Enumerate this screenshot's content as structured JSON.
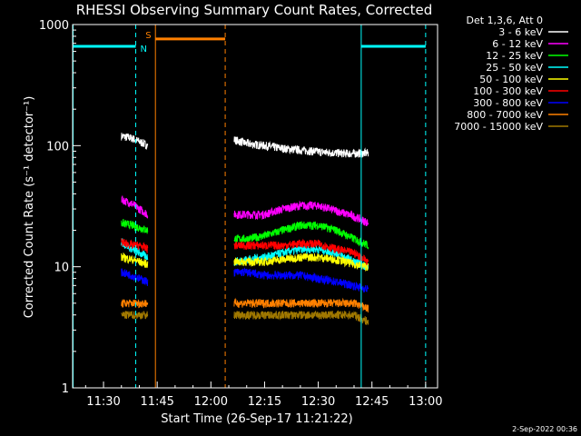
{
  "chart_data": {
    "type": "line",
    "title": "RHESSI Observing Summary Count Rates, Corrected",
    "xlabel": "Start Time (26-Sep-17 11:21:22)",
    "ylabel": "Corrected Count Rate (s⁻¹ detector⁻¹)",
    "yscale": "log",
    "ylim": [
      1,
      1000
    ],
    "xlim": [
      "11:21:22",
      "13:03:20"
    ],
    "x_ticks": [
      "11:30",
      "11:45",
      "12:00",
      "12:15",
      "12:30",
      "12:45",
      "13:00"
    ],
    "y_ticks": [
      "1",
      "10",
      "100",
      "1000"
    ],
    "grid": false,
    "legend_position": "right",
    "legend_header": "Det 1,3,6, Att 0",
    "series": [
      {
        "name": "3 - 6 keV",
        "color": "#ffffff",
        "values": [
          [
            [
              "11:35:00",
              120
            ],
            [
              "11:38:00",
              115
            ],
            [
              "11:40:00",
              108
            ],
            [
              "11:42:20",
              100
            ]
          ],
          [
            [
              "12:06:30",
              112
            ],
            [
              "12:10:00",
              104
            ],
            [
              "12:15:00",
              100
            ],
            [
              "12:20:00",
              95
            ],
            [
              "12:25:00",
              92
            ],
            [
              "12:30:00",
              89
            ],
            [
              "12:35:00",
              87
            ],
            [
              "12:40:00",
              86
            ],
            [
              "12:44:00",
              87
            ]
          ]
        ]
      },
      {
        "name": "6 - 12 keV",
        "color": "#ff00ff",
        "values": [
          [
            [
              "11:35:00",
              36
            ],
            [
              "11:38:00",
              33
            ],
            [
              "11:40:00",
              30
            ],
            [
              "11:42:20",
              27
            ]
          ],
          [
            [
              "12:06:30",
              27
            ],
            [
              "12:10:00",
              27
            ],
            [
              "12:15:00",
              27
            ],
            [
              "12:20:00",
              30
            ],
            [
              "12:25:00",
              32
            ],
            [
              "12:30:00",
              32
            ],
            [
              "12:35:00",
              29
            ],
            [
              "12:40:00",
              26
            ],
            [
              "12:44:00",
              23
            ]
          ]
        ]
      },
      {
        "name": "12 - 25 keV",
        "color": "#00ff00",
        "values": [
          [
            [
              "11:35:00",
              23
            ],
            [
              "11:38:00",
              22
            ],
            [
              "11:40:00",
              21
            ],
            [
              "11:42:20",
              20
            ]
          ],
          [
            [
              "12:06:30",
              17
            ],
            [
              "12:10:00",
              17
            ],
            [
              "12:15:00",
              18
            ],
            [
              "12:20:00",
              20
            ],
            [
              "12:25:00",
              22
            ],
            [
              "12:30:00",
              22
            ],
            [
              "12:35:00",
              20
            ],
            [
              "12:40:00",
              17
            ],
            [
              "12:44:00",
              15
            ]
          ]
        ]
      },
      {
        "name": "25 - 50 keV",
        "color": "#00ffff",
        "values": [
          [
            [
              "11:35:00",
              16
            ],
            [
              "11:38:00",
              14
            ],
            [
              "11:40:00",
              13
            ],
            [
              "11:42:20",
              12
            ]
          ],
          [
            [
              "12:06:30",
              11
            ],
            [
              "12:10:00",
              11.5
            ],
            [
              "12:15:00",
              12
            ],
            [
              "12:20:00",
              13
            ],
            [
              "12:25:00",
              14
            ],
            [
              "12:30:00",
              14
            ],
            [
              "12:35:00",
              13
            ],
            [
              "12:40:00",
              11
            ],
            [
              "12:44:00",
              10
            ]
          ]
        ]
      },
      {
        "name": "50 - 100 keV",
        "color": "#ffff00",
        "values": [
          [
            [
              "11:35:00",
              12
            ],
            [
              "11:38:00",
              11.5
            ],
            [
              "11:40:00",
              11
            ],
            [
              "11:42:20",
              10.5
            ]
          ],
          [
            [
              "12:06:30",
              11
            ],
            [
              "12:10:00",
              11
            ],
            [
              "12:15:00",
              11
            ],
            [
              "12:20:00",
              11.5
            ],
            [
              "12:25:00",
              12
            ],
            [
              "12:30:00",
              12
            ],
            [
              "12:35:00",
              11.5
            ],
            [
              "12:40:00",
              10.5
            ],
            [
              "12:44:00",
              10
            ]
          ]
        ]
      },
      {
        "name": "100 - 300 keV",
        "color": "#ff0000",
        "values": [
          [
            [
              "11:35:00",
              16
            ],
            [
              "11:38:00",
              15
            ],
            [
              "11:40:00",
              15
            ],
            [
              "11:42:20",
              14
            ]
          ],
          [
            [
              "12:06:30",
              15
            ],
            [
              "12:10:00",
              15
            ],
            [
              "12:15:00",
              15
            ],
            [
              "12:20:00",
              15
            ],
            [
              "12:25:00",
              15.5
            ],
            [
              "12:30:00",
              15.5
            ],
            [
              "12:35:00",
              14
            ],
            [
              "12:40:00",
              13
            ],
            [
              "12:44:00",
              11
            ]
          ]
        ]
      },
      {
        "name": "300 - 800 keV",
        "color": "#0000ff",
        "values": [
          [
            [
              "11:35:00",
              9
            ],
            [
              "11:38:00",
              8.5
            ],
            [
              "11:40:00",
              8
            ],
            [
              "11:42:20",
              7.5
            ]
          ],
          [
            [
              "12:06:30",
              9
            ],
            [
              "12:10:00",
              9
            ],
            [
              "12:15:00",
              8.5
            ],
            [
              "12:20:00",
              8.5
            ],
            [
              "12:25:00",
              8.5
            ],
            [
              "12:30:00",
              8
            ],
            [
              "12:35:00",
              7.5
            ],
            [
              "12:40:00",
              7
            ],
            [
              "12:44:00",
              6.5
            ]
          ]
        ]
      },
      {
        "name": "800 - 7000 keV",
        "color": "#ff8000",
        "values": [
          [
            [
              "11:35:00",
              5
            ],
            [
              "11:38:00",
              5
            ],
            [
              "11:40:00",
              5
            ],
            [
              "11:42:20",
              5
            ]
          ],
          [
            [
              "12:06:30",
              5
            ],
            [
              "12:10:00",
              5
            ],
            [
              "12:15:00",
              5
            ],
            [
              "12:20:00",
              5
            ],
            [
              "12:25:00",
              5
            ],
            [
              "12:30:00",
              5
            ],
            [
              "12:35:00",
              5
            ],
            [
              "12:40:00",
              5
            ],
            [
              "12:44:00",
              4.5
            ]
          ]
        ]
      },
      {
        "name": "7000 - 15000 keV",
        "color": "#a07800",
        "values": [
          [
            [
              "11:35:00",
              4
            ],
            [
              "11:38:00",
              4
            ],
            [
              "11:40:00",
              4
            ],
            [
              "11:42:20",
              4
            ]
          ],
          [
            [
              "12:06:30",
              4
            ],
            [
              "12:10:00",
              4
            ],
            [
              "12:15:00",
              4
            ],
            [
              "12:20:00",
              4
            ],
            [
              "12:25:00",
              4
            ],
            [
              "12:30:00",
              4
            ],
            [
              "12:35:00",
              4
            ],
            [
              "12:40:00",
              4
            ],
            [
              "12:44:00",
              3.5
            ]
          ]
        ]
      }
    ],
    "markers": [
      {
        "label": "",
        "color": "#00ffff",
        "style": "solid",
        "x": "11:21:30"
      },
      {
        "label": "",
        "color": "#00ffff",
        "style": "dashed",
        "x": "11:39:00"
      },
      {
        "label": "",
        "color": "#ff8000",
        "style": "solid",
        "x": "11:44:30"
      },
      {
        "label": "",
        "color": "#ff8000",
        "style": "dashed",
        "x": "12:04:00"
      },
      {
        "label": "",
        "color": "#00ffff",
        "style": "solid",
        "x": "12:42:00"
      },
      {
        "label": "",
        "color": "#00ffff",
        "style": "dashed",
        "x": "13:00:00"
      }
    ],
    "intervals": [
      {
        "label": "",
        "color": "#00ffff",
        "start": "11:21:30",
        "end": "11:39:00",
        "y": 660
      },
      {
        "label": "N",
        "color": "#00ffff",
        "start": "11:39:00",
        "end": "11:44:30",
        "y": 660
      },
      {
        "label": "S",
        "color": "#ff8000",
        "start": "11:44:30",
        "end": "12:04:00",
        "y": 760
      },
      {
        "label": "",
        "color": "#00ffff",
        "start": "12:42:00",
        "end": "13:00:00",
        "y": 660
      }
    ],
    "footer": "2-Sep-2022 00:36"
  }
}
